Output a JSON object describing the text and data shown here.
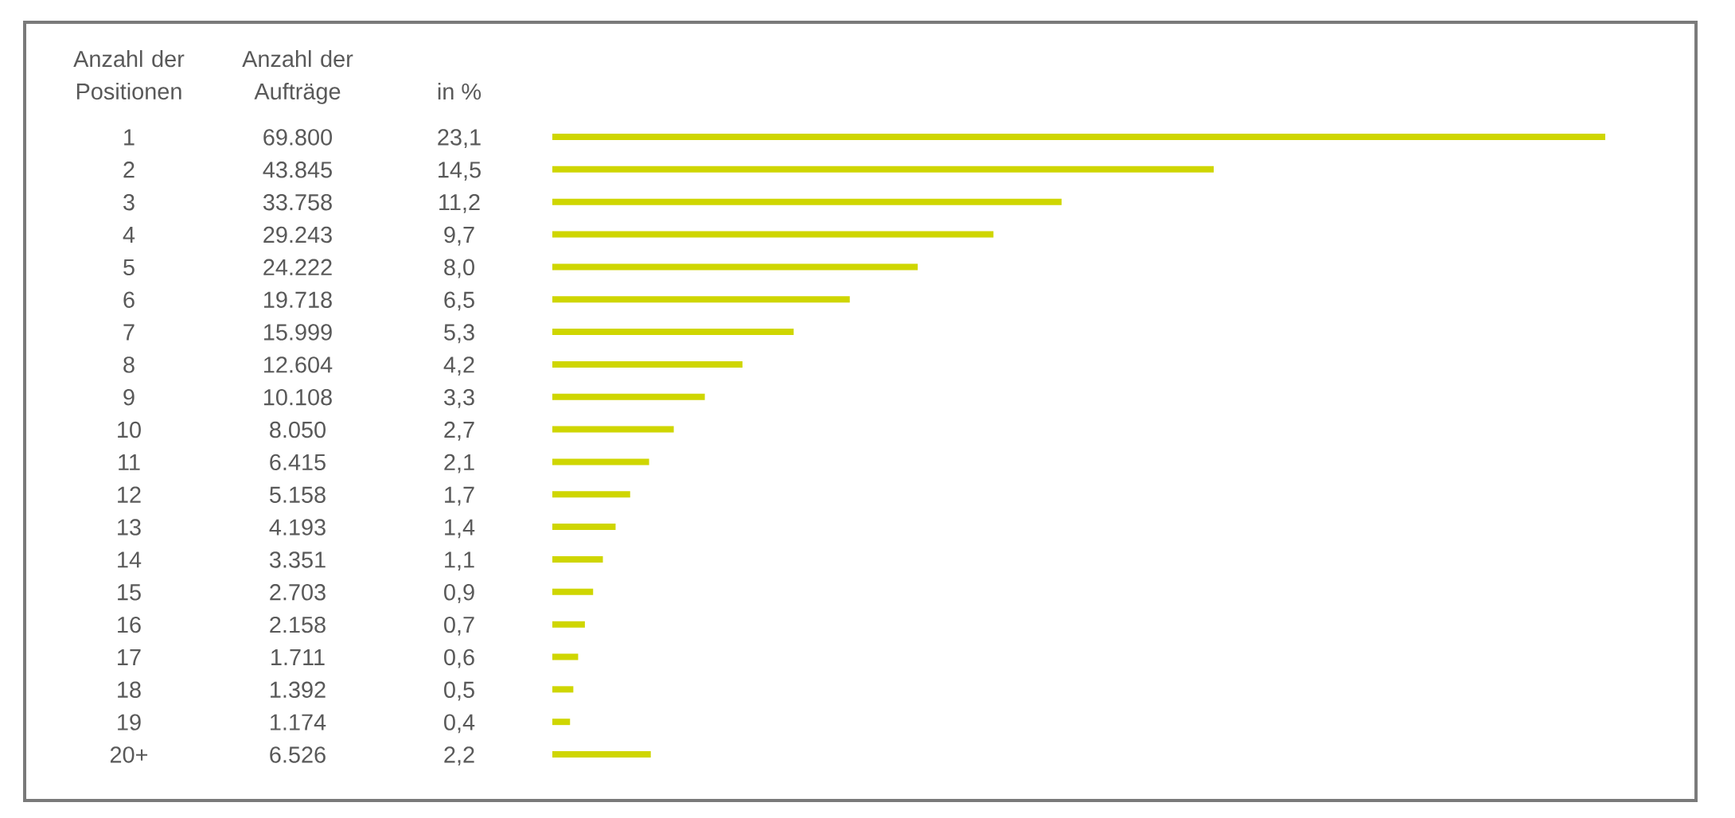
{
  "chart_data": {
    "type": "bar",
    "orientation": "horizontal",
    "ylabel": "Anzahl der Positionen",
    "xlabel": "Anzahl der Aufträge",
    "categories": [
      "1",
      "2",
      "3",
      "4",
      "5",
      "6",
      "7",
      "8",
      "9",
      "10",
      "11",
      "12",
      "13",
      "14",
      "15",
      "16",
      "17",
      "18",
      "19",
      "20+"
    ],
    "values": [
      69800,
      43845,
      33758,
      29243,
      24222,
      19718,
      15999,
      12604,
      10108,
      8050,
      6415,
      5158,
      4193,
      3351,
      2703,
      2158,
      1711,
      1392,
      1174,
      6526
    ],
    "value_labels": [
      "69.800",
      "43.845",
      "33.758",
      "29.243",
      "24.222",
      "19.718",
      "15.999",
      "12.604",
      "10.108",
      "8.050",
      "6.415",
      "5.158",
      "4.193",
      "3.351",
      "2.703",
      "2.158",
      "1.711",
      "1.392",
      "1.174",
      "6.526"
    ],
    "color": "#cfd600",
    "tick_labels": "y",
    "annotations": [
      "in %",
      "23,1",
      "14,5",
      "11,2",
      "9,7",
      "8,0",
      "6,5",
      "5,3",
      "4,2",
      "3,3",
      "2,7",
      "2,1",
      "1,7",
      "1,4",
      "1,1",
      "0,9",
      "0,7",
      "0,6",
      "0,5",
      "0,4",
      "2,2"
    ]
  }
}
